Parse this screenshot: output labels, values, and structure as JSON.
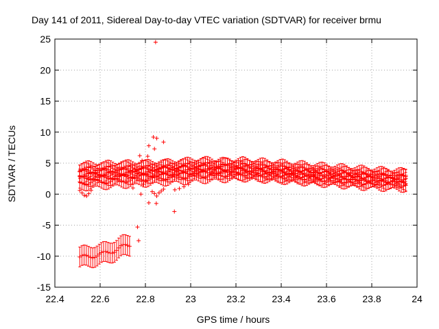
{
  "chart_data": {
    "type": "scatter",
    "title": "Day 141 of 2011, Sidereal Day-to-day VTEC variation (SDTVAR) for receiver brmu",
    "xlabel": "GPS time / hours",
    "ylabel": "SDTVAR / TECUs",
    "xlim": [
      22.4,
      24
    ],
    "ylim": [
      -15,
      25
    ],
    "x_ticks": [
      "22.4",
      "22.6",
      "22.8",
      "23",
      "23.2",
      "23.4",
      "23.6",
      "23.8",
      "24"
    ],
    "y_ticks": [
      "-15",
      "-10",
      "-5",
      "0",
      "5",
      "10",
      "15",
      "20",
      "25"
    ],
    "x_tick_values": [
      22.4,
      22.6,
      22.8,
      23.0,
      23.2,
      23.4,
      23.6,
      23.8,
      24.0
    ],
    "y_tick_values": [
      -15,
      -10,
      -5,
      0,
      5,
      10,
      15,
      20,
      25
    ],
    "grid": true,
    "color": "#ff0000",
    "series_bands": [
      {
        "name": "band-1",
        "x_start": 22.51,
        "x_end": 23.95,
        "y": [
          3.6,
          3.9,
          4.1,
          4.4,
          4.6,
          4.2,
          3.7,
          3.2,
          2.8
        ],
        "err": 1.1
      },
      {
        "name": "band-2",
        "x_start": 22.51,
        "x_end": 23.95,
        "y": [
          2.6,
          2.9,
          3.3,
          3.7,
          4.0,
          3.6,
          3.0,
          2.4,
          2.0
        ],
        "err": 1.1
      },
      {
        "name": "band-3",
        "x_start": 22.51,
        "x_end": 23.95,
        "y": [
          1.8,
          2.2,
          2.6,
          3.0,
          3.3,
          2.9,
          2.4,
          1.9,
          1.6
        ],
        "err": 1.0
      },
      {
        "name": "band-4",
        "x_start": 22.51,
        "x_end": 23.95,
        "y": [
          3.1,
          3.3,
          3.5,
          3.9,
          3.5,
          3.1,
          2.7,
          2.5,
          2.3
        ],
        "err": 1.0
      },
      {
        "name": "band-5",
        "x_start": 22.51,
        "x_end": 23.95,
        "y": [
          4.0,
          4.2,
          4.3,
          4.8,
          4.3,
          3.8,
          3.3,
          3.0,
          2.7
        ],
        "err": 1.0
      },
      {
        "name": "band-low",
        "x_start": 22.51,
        "x_end": 22.73,
        "y": [
          -10.2,
          -10.1,
          -9.9,
          -9.7,
          -9.4,
          -9.0,
          -8.5,
          -8.2
        ],
        "err": 1.6
      }
    ],
    "scatter_points": [
      {
        "x": 22.845,
        "y": 24.5
      },
      {
        "x": 22.835,
        "y": 9.2
      },
      {
        "x": 22.85,
        "y": 9.0
      },
      {
        "x": 22.815,
        "y": 7.8
      },
      {
        "x": 22.84,
        "y": 7.3
      },
      {
        "x": 22.88,
        "y": 8.4
      },
      {
        "x": 22.81,
        "y": 6.1
      },
      {
        "x": 22.775,
        "y": 6.2
      },
      {
        "x": 22.785,
        "y": 5.4
      },
      {
        "x": 22.79,
        "y": 1.6
      },
      {
        "x": 22.8,
        "y": 2.1
      },
      {
        "x": 22.78,
        "y": 0.0
      },
      {
        "x": 22.83,
        "y": 0.4
      },
      {
        "x": 22.84,
        "y": 0.1
      },
      {
        "x": 22.85,
        "y": -0.3
      },
      {
        "x": 22.86,
        "y": 0.2
      },
      {
        "x": 22.87,
        "y": 0.5
      },
      {
        "x": 22.88,
        "y": 0.8
      },
      {
        "x": 22.815,
        "y": -1.4
      },
      {
        "x": 22.848,
        "y": -1.5
      },
      {
        "x": 22.928,
        "y": -2.8
      },
      {
        "x": 22.765,
        "y": -5.3
      },
      {
        "x": 22.77,
        "y": -7.5
      },
      {
        "x": 22.745,
        "y": 1.0
      },
      {
        "x": 22.51,
        "y": 0.6
      },
      {
        "x": 22.52,
        "y": 0.2
      },
      {
        "x": 22.53,
        "y": -0.2
      },
      {
        "x": 22.54,
        "y": -0.3
      },
      {
        "x": 22.55,
        "y": 0.1
      },
      {
        "x": 22.56,
        "y": 0.6
      },
      {
        "x": 22.93,
        "y": 0.7
      },
      {
        "x": 22.95,
        "y": 0.9
      },
      {
        "x": 22.97,
        "y": 1.2
      },
      {
        "x": 22.99,
        "y": 1.6
      }
    ]
  }
}
